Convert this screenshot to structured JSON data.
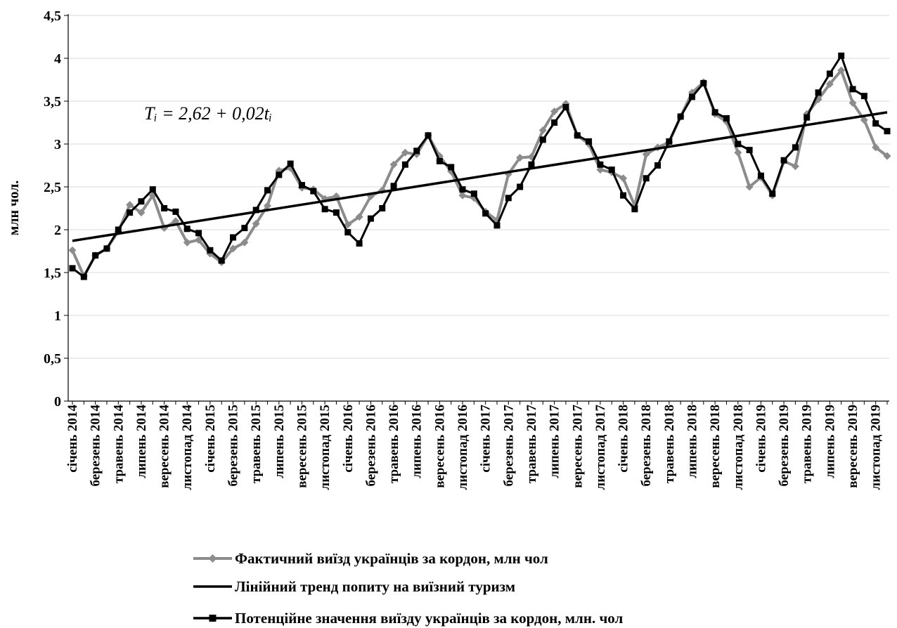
{
  "chart_data": {
    "type": "line",
    "ylabel": "млн чол.",
    "ylim": [
      0,
      4.5
    ],
    "yticks": [
      "0",
      "0,5",
      "1",
      "1,5",
      "2",
      "2,5",
      "3",
      "3,5",
      "4",
      "4,5"
    ],
    "ytick_values": [
      0,
      0.5,
      1,
      1.5,
      2,
      2.5,
      3,
      3.5,
      4,
      4.5
    ],
    "xtick_labels": [
      "січень 2014",
      "березень 2014",
      "травень 2014",
      "липень 2014",
      "вересень 2014",
      "листопад 2014",
      "січень 2015",
      "березень 2015",
      "травень 2015",
      "липень 2015",
      "вересень 2015",
      "листопад 2015",
      "січень 2016",
      "березень 2016",
      "травень 2016",
      "липень 2016",
      "вересень 2016",
      "листопад 2016",
      "січень 2017",
      "березень 2017",
      "травень 2017",
      "липень 2017",
      "вересень 2017",
      "листопад 2017",
      "січень 2018",
      "березень 2018",
      "травень 2018",
      "липень 2018",
      "вересень 2018",
      "листопад 2018",
      "січень 2019",
      "березень 2019",
      "травень 2019",
      "липень 2019",
      "вересень 2019",
      "листопад 2019"
    ],
    "annotation": {
      "equation": "Tᵢ = 2,62 + 0,02tᵢ"
    },
    "series": [
      {
        "name": "Фактичний виїзд українців за кордон, млн чол",
        "color": "#8c8c8c",
        "marker": "diamond",
        "values": [
          1.76,
          1.46,
          1.7,
          1.78,
          1.98,
          2.29,
          2.2,
          2.4,
          2.02,
          2.1,
          1.85,
          1.88,
          1.72,
          1.62,
          1.78,
          1.85,
          2.07,
          2.28,
          2.69,
          2.72,
          2.49,
          2.47,
          2.36,
          2.39,
          2.06,
          2.15,
          2.39,
          2.46,
          2.76,
          2.9,
          2.88,
          3.1,
          2.86,
          2.68,
          2.4,
          2.37,
          2.21,
          2.11,
          2.65,
          2.84,
          2.85,
          3.16,
          3.38,
          3.47,
          3.1,
          3.0,
          2.7,
          2.67,
          2.6,
          2.28,
          2.88,
          2.96,
          3.02,
          3.32,
          3.6,
          3.72,
          3.35,
          3.26,
          2.9,
          2.5,
          2.61,
          2.4,
          2.8,
          2.74,
          3.35,
          3.52,
          3.7,
          3.86,
          3.48,
          3.28,
          2.96,
          2.86
        ]
      },
      {
        "name": "Лінійний тренд попиту на виїзний туризм",
        "color": "#000000",
        "marker": "none",
        "values": [
          1.87,
          3.37
        ]
      },
      {
        "name": "Потенційне значення виїзду українців за кордон, млн. чол",
        "color": "#000000",
        "marker": "square",
        "values": [
          1.55,
          1.45,
          1.7,
          1.78,
          2.0,
          2.2,
          2.33,
          2.47,
          2.25,
          2.21,
          2.01,
          1.96,
          1.76,
          1.64,
          1.91,
          2.02,
          2.23,
          2.46,
          2.64,
          2.77,
          2.52,
          2.45,
          2.24,
          2.2,
          1.97,
          1.84,
          2.13,
          2.25,
          2.51,
          2.76,
          2.92,
          3.1,
          2.8,
          2.73,
          2.47,
          2.42,
          2.19,
          2.05,
          2.37,
          2.5,
          2.76,
          3.05,
          3.25,
          3.43,
          3.1,
          3.03,
          2.76,
          2.7,
          2.4,
          2.24,
          2.6,
          2.75,
          3.03,
          3.32,
          3.55,
          3.71,
          3.37,
          3.3,
          3.0,
          2.93,
          2.63,
          2.42,
          2.81,
          2.96,
          3.31,
          3.6,
          3.82,
          4.03,
          3.64,
          3.56,
          3.24,
          3.15
        ]
      }
    ],
    "legend_position": "bottom"
  }
}
